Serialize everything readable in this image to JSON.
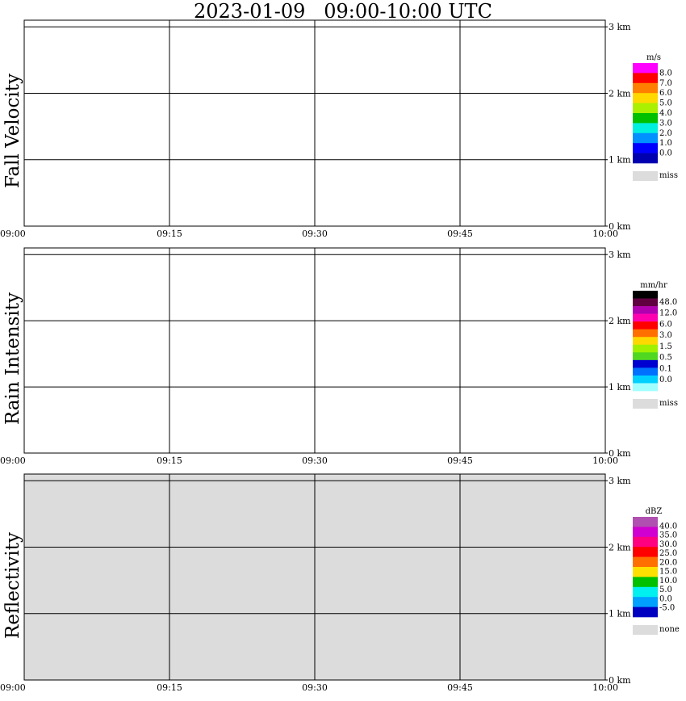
{
  "title": "2023-01-09   09:00-10:00 UTC",
  "chart_data": [
    {
      "type": "heatmap",
      "ylabel": "Fall Velocity",
      "x_ticks": [
        "09:00",
        "09:15",
        "09:30",
        "09:45",
        "10:00"
      ],
      "y_ticks": [
        "0 km",
        "1 km",
        "2 km",
        "3 km"
      ],
      "xlim": [
        "09:00",
        "10:00"
      ],
      "ylim_km": [
        0,
        3.1
      ],
      "grid": true,
      "background": "#ffffff",
      "legend": {
        "unit": "m/s",
        "levels": [
          "8.0",
          "7.0",
          "6.0",
          "5.0",
          "4.0",
          "3.0",
          "2.0",
          "1.0",
          "0.0"
        ],
        "colors": [
          "#ff00ff",
          "#ff0000",
          "#ff7f00",
          "#ffd800",
          "#aaf000",
          "#00c000",
          "#00f0e0",
          "#0090ff",
          "#0000ff",
          "#0000b0"
        ],
        "missing_label": "miss",
        "missing_color": "#dcdcdc"
      }
    },
    {
      "type": "heatmap",
      "ylabel": "Rain Intensity",
      "x_ticks": [
        "09:00",
        "09:15",
        "09:30",
        "09:45",
        "10:00"
      ],
      "y_ticks": [
        "0 km",
        "1 km",
        "2 km",
        "3 km"
      ],
      "xlim": [
        "09:00",
        "10:00"
      ],
      "ylim_km": [
        0,
        3.1
      ],
      "grid": true,
      "background": "#ffffff",
      "legend": {
        "unit": "mm/hr",
        "levels": [
          "48.0",
          "12.0",
          "6.0",
          "3.0",
          "1.5",
          "0.5",
          "0.1",
          "0.0"
        ],
        "colors": [
          "#000000",
          "#600040",
          "#b000b0",
          "#ff00b0",
          "#ff0000",
          "#ff7000",
          "#ffd800",
          "#a0f000",
          "#50d820",
          "#0000d0",
          "#0070ff",
          "#00d0ff",
          "#a0ffff"
        ],
        "missing_label": "miss",
        "missing_color": "#dcdcdc"
      }
    },
    {
      "type": "heatmap",
      "ylabel": "Reflectivity",
      "x_ticks": [
        "09:00",
        "09:15",
        "09:30",
        "09:45",
        "10:00"
      ],
      "y_ticks": [
        "0 km",
        "1 km",
        "2 km",
        "3 km"
      ],
      "xlim": [
        "09:00",
        "10:00"
      ],
      "ylim_km": [
        0,
        3.1
      ],
      "grid": true,
      "background": "#dcdcdc",
      "legend": {
        "unit": "dBZ",
        "levels": [
          "40.0",
          "35.0",
          "30.0",
          "25.0",
          "20.0",
          "15.0",
          "10.0",
          "5.0",
          "0.0",
          "-5.0"
        ],
        "colors": [
          "#b050b0",
          "#d000d0",
          "#ff0080",
          "#ff0000",
          "#ff7000",
          "#ffe000",
          "#00c000",
          "#00f0f0",
          "#00a0ff",
          "#0000c0"
        ],
        "missing_label": "none",
        "missing_color": "#dcdcdc"
      }
    }
  ]
}
